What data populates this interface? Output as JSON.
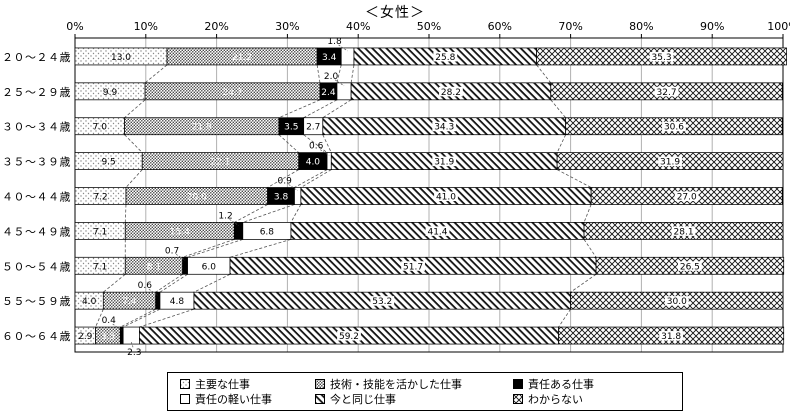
{
  "chart_data": {
    "type": "bar",
    "orientation": "horizontal",
    "stacked": true,
    "title": "＜女性＞",
    "xlabel": "",
    "ylabel": "",
    "xlim": [
      0,
      100
    ],
    "x_ticks": [
      "0%",
      "10%",
      "20%",
      "30%",
      "40%",
      "50%",
      "60%",
      "70%",
      "80%",
      "90%",
      "100%"
    ],
    "grid": true,
    "legend_position": "bottom",
    "categories": [
      "２０～２４歳",
      "２５～２９歳",
      "３０～３４歳",
      "３５～３９歳",
      "４０～４４歳",
      "４５～４９歳",
      "５０～５４歳",
      "５５～５９歳",
      "６０～６４歳"
    ],
    "series": [
      {
        "name": "主要な仕事",
        "pattern": "sparse-dots",
        "values": [
          13.0,
          9.9,
          7.0,
          9.5,
          7.2,
          7.1,
          7.1,
          4.0,
          2.9
        ]
      },
      {
        "name": "技術・技能を活かした仕事",
        "pattern": "dense-dots",
        "values": [
          21.2,
          24.7,
          21.8,
          22.1,
          20.0,
          15.4,
          8.1,
          7.4,
          3.5
        ]
      },
      {
        "name": "責任ある仕事",
        "pattern": "solid-black",
        "values": [
          3.4,
          2.4,
          3.5,
          4.0,
          3.8,
          1.2,
          0.7,
          0.6,
          0.4
        ]
      },
      {
        "name": "責任の軽い仕事",
        "pattern": "white",
        "values": [
          1.8,
          2.0,
          2.7,
          0.6,
          0.9,
          6.8,
          6.0,
          4.8,
          2.3
        ]
      },
      {
        "name": "今と同じ仕事",
        "pattern": "diagonal",
        "values": [
          25.8,
          28.2,
          34.3,
          31.9,
          41.0,
          41.4,
          51.7,
          53.2,
          59.2
        ]
      },
      {
        "name": "わからない",
        "pattern": "crosshatch",
        "values": [
          35.3,
          32.7,
          30.6,
          31.9,
          27.0,
          28.1,
          26.5,
          30.0,
          31.8
        ]
      }
    ]
  },
  "legend": {
    "items": [
      {
        "label": "主要な仕事",
        "pattern": "sparse-dots"
      },
      {
        "label": "技術・技能を活かした仕事",
        "pattern": "dense-dots"
      },
      {
        "label": "責任ある仕事",
        "pattern": "solid-black"
      },
      {
        "label": "責任の軽い仕事",
        "pattern": "white"
      },
      {
        "label": "今と同じ仕事",
        "pattern": "diagonal"
      },
      {
        "label": "わからない",
        "pattern": "crosshatch"
      }
    ]
  },
  "colors": {
    "background": "#ffffff",
    "bar_border": "#000000",
    "plot_border": "#000000",
    "grid_line": "#b0b0b0",
    "series_line": "#555555",
    "text": "#000000"
  }
}
